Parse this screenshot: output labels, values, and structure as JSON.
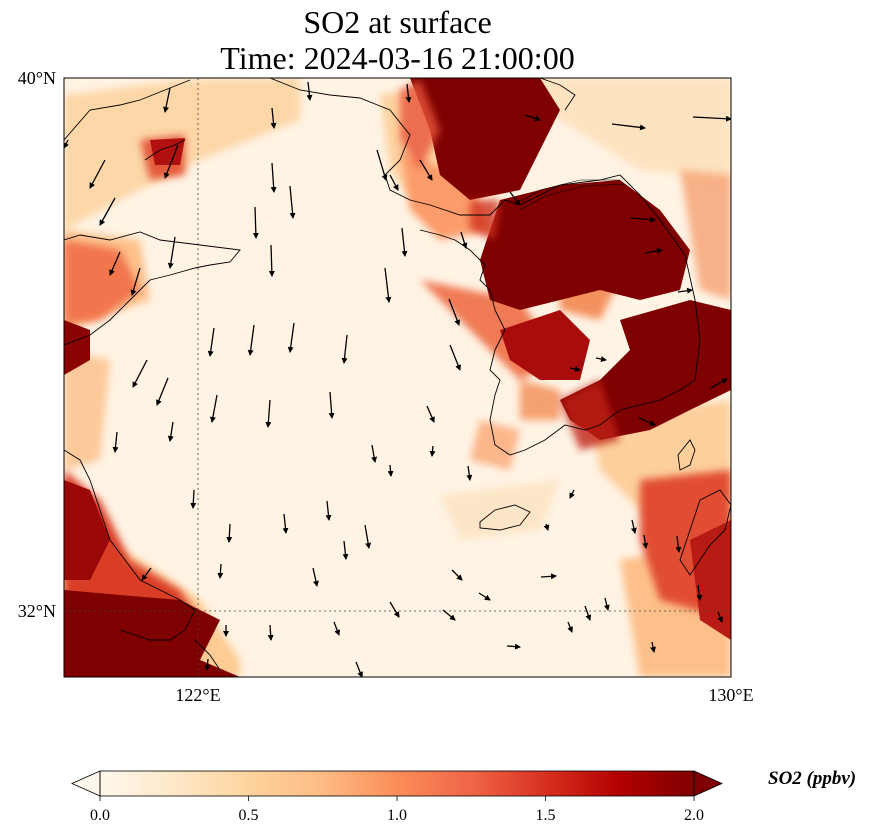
{
  "title": {
    "line1": "SO2 at surface",
    "line2": "Time: 2024-03-16 21:00:00"
  },
  "map": {
    "lat_range": [
      30.8,
      40.0
    ],
    "lon_range": [
      120.0,
      130.0
    ],
    "lat_ticks": [
      {
        "value": 40,
        "label": "40°N"
      },
      {
        "value": 32,
        "label": "32°N"
      }
    ],
    "lon_ticks": [
      {
        "value": 122,
        "label": "122°E"
      },
      {
        "value": 130,
        "label": "130°E"
      }
    ],
    "gridlines": "dotted",
    "high_regions": [
      {
        "name": "north-korea-korea-bay",
        "level": 2.0
      },
      {
        "name": "south-korea-east",
        "level": 2.0
      },
      {
        "name": "south-korea-west-coast",
        "level": 1.6
      },
      {
        "name": "shandong-north-coast",
        "level": 1.2
      },
      {
        "name": "jiangsu-shanghai-coast",
        "level": 2.0
      },
      {
        "name": "kyushu-west",
        "level": 1.3
      }
    ],
    "wind_vectors": "downward/southward over the Yellow Sea, eastward near 130°E"
  },
  "colorbar": {
    "label": "SO2 (ppbv)",
    "min": 0.0,
    "max": 2.0,
    "extend": "both",
    "colormap": [
      "#fff7ec",
      "#fee8c8",
      "#fdd49e",
      "#fdbb84",
      "#fc8d59",
      "#ef6548",
      "#d7301f",
      "#b30000",
      "#7f0000"
    ],
    "ticks": [
      {
        "value": 0.0,
        "label": "0.0"
      },
      {
        "value": 0.5,
        "label": "0.5"
      },
      {
        "value": 1.0,
        "label": "1.0"
      },
      {
        "value": 1.5,
        "label": "1.5"
      },
      {
        "value": 2.0,
        "label": "2.0"
      }
    ]
  }
}
